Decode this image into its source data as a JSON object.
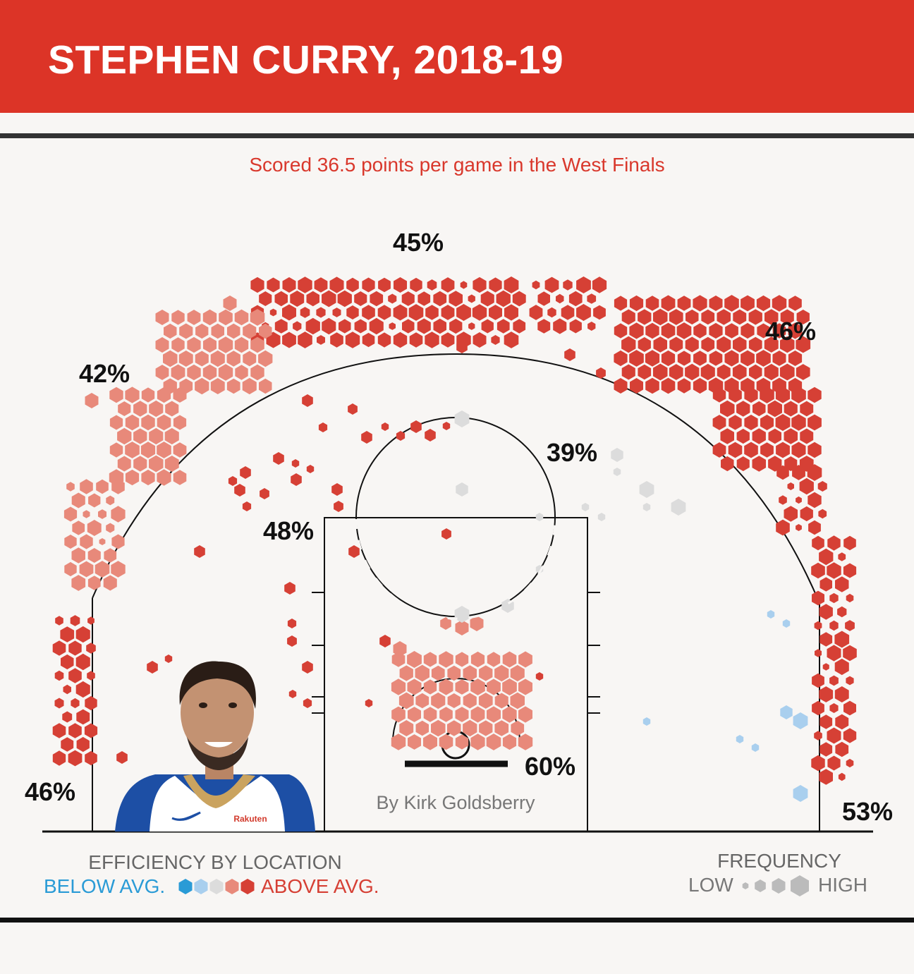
{
  "title": "STEPHEN CURRY, 2018-19",
  "subtitle": "Scored 36.5 points per game in the West Finals",
  "byline": "By Kirk Goldsberry",
  "colors": {
    "header": "#dc3427",
    "subtitle": "#d9382c",
    "above_avg": "#d64035",
    "slightly_above": "#e8897a",
    "average": "#dcdcdc",
    "slightly_below": "#a9cfee",
    "below_avg": "#2a9bd6"
  },
  "chart_data": {
    "type": "hexbin shot chart",
    "zones": [
      {
        "zone": "top of key three",
        "fg_pct": "45%"
      },
      {
        "zone": "right wing three",
        "fg_pct": "46%"
      },
      {
        "zone": "left wing three",
        "fg_pct": "42%"
      },
      {
        "zone": "right elbow",
        "fg_pct": "39%"
      },
      {
        "zone": "left elbow",
        "fg_pct": "48%"
      },
      {
        "zone": "restricted area",
        "fg_pct": "60%"
      },
      {
        "zone": "left corner three",
        "fg_pct": "46%"
      },
      {
        "zone": "right corner three",
        "fg_pct": "53%"
      }
    ]
  },
  "legend": {
    "efficiency_title": "EFFICIENCY BY LOCATION",
    "below_label": "BELOW AVG.",
    "above_label": "ABOVE AVG.",
    "frequency_title": "FREQUENCY",
    "low_label": "LOW",
    "high_label": "HIGH"
  },
  "player_photo": {
    "jersey_text": "Rakuten"
  }
}
